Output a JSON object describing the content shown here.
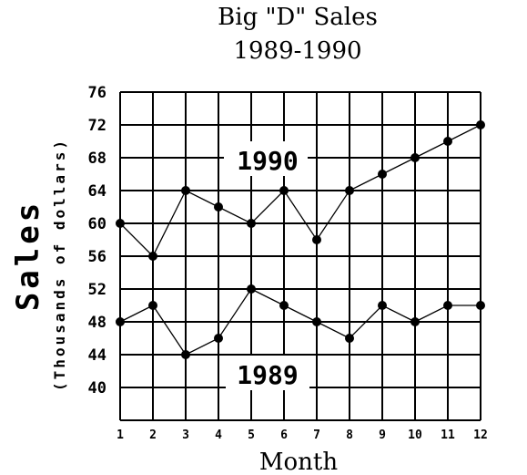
{
  "chart_data": {
    "type": "line",
    "title": [
      "Big \"D\" Sales",
      "1989-1990"
    ],
    "xlabel": "Month",
    "ylabel_main": "Sales",
    "ylabel_sub": "(Thousands of dollars)",
    "x": [
      1,
      2,
      3,
      4,
      5,
      6,
      7,
      8,
      9,
      10,
      11,
      12
    ],
    "x_tick_labels": [
      "1",
      "2",
      "3",
      "4",
      "5",
      "6",
      "7",
      "8",
      "9",
      "10",
      "11",
      "12"
    ],
    "y_ticks": [
      40,
      44,
      48,
      52,
      56,
      60,
      64,
      68,
      72,
      76
    ],
    "ylim": [
      36,
      76
    ],
    "grid": true,
    "series": [
      {
        "name": "1990",
        "values": [
          60,
          56,
          64,
          62,
          60,
          64,
          58,
          64,
          66,
          68,
          70,
          72
        ]
      },
      {
        "name": "1989",
        "values": [
          48,
          50,
          44,
          46,
          52,
          50,
          48,
          46,
          50,
          48,
          50,
          50
        ]
      }
    ]
  }
}
